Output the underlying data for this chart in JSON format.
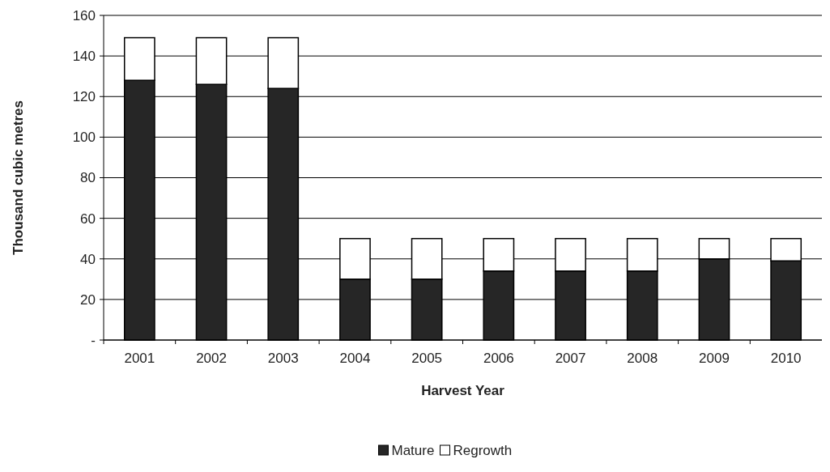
{
  "chart_data": {
    "type": "bar",
    "xlabel": "Harvest Year",
    "ylabel": "Thousand cubic metres",
    "categories": [
      "2001",
      "2002",
      "2003",
      "2004",
      "2005",
      "2006",
      "2007",
      "2008",
      "2009",
      "2010"
    ],
    "series": [
      {
        "name": "Mature",
        "color": "#262626",
        "values": [
          128,
          126,
          124,
          30,
          30,
          34,
          34,
          34,
          40,
          39
        ]
      },
      {
        "name": "Regrowth",
        "color": "#ffffff",
        "values": [
          21,
          23,
          25,
          20,
          20,
          16,
          16,
          16,
          10,
          11
        ]
      }
    ],
    "stacked": true,
    "ylim": [
      0,
      160
    ],
    "yticks": [
      {
        "value": 0,
        "label": "-"
      },
      20,
      40,
      60,
      80,
      100,
      120,
      140,
      160
    ],
    "grid": "y",
    "legend": "bottom"
  }
}
